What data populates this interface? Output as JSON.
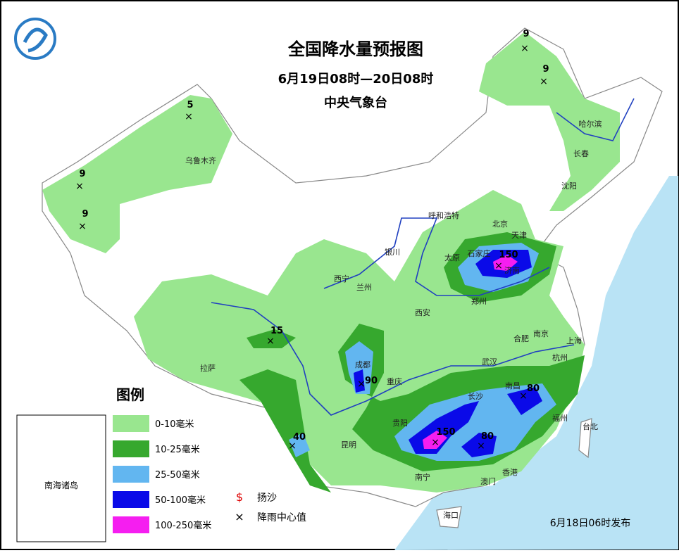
{
  "title": "全国降水量预报图",
  "subtitle": "6月19日08时—20日08时",
  "publisher": "中央气象台",
  "issued": "6月18日06时发布",
  "legend": {
    "title": "图例",
    "items": [
      {
        "label": "0-10毫米",
        "color": "#99e68f"
      },
      {
        "label": "10-25毫米",
        "color": "#36a82e"
      },
      {
        "label": "25-50毫米",
        "color": "#62b6f0"
      },
      {
        "label": "50-100毫米",
        "color": "#0a0ae8"
      },
      {
        "label": "100-250毫米",
        "color": "#f51ef0"
      }
    ],
    "symbols": [
      {
        "symbol": "$",
        "label": "扬沙"
      },
      {
        "symbol": "×",
        "label": "降雨中心值"
      }
    ]
  },
  "inset_label": "南海诸岛",
  "cities": [
    "乌鲁木齐",
    "哈尔滨",
    "长春",
    "沈阳",
    "呼和浩特",
    "北京",
    "天津",
    "石家庄",
    "济南",
    "太原",
    "银川",
    "西宁",
    "兰州",
    "郑州",
    "西安",
    "合肥",
    "南京",
    "上海",
    "成都",
    "重庆",
    "武汉",
    "杭州",
    "长沙",
    "南昌",
    "福州",
    "台北",
    "贵阳",
    "昆明",
    "南宁",
    "拉萨",
    "香港",
    "澳门",
    "海口"
  ],
  "centers": [
    9,
    9,
    5,
    9,
    9,
    15,
    150,
    90,
    80,
    150,
    80,
    40
  ]
}
